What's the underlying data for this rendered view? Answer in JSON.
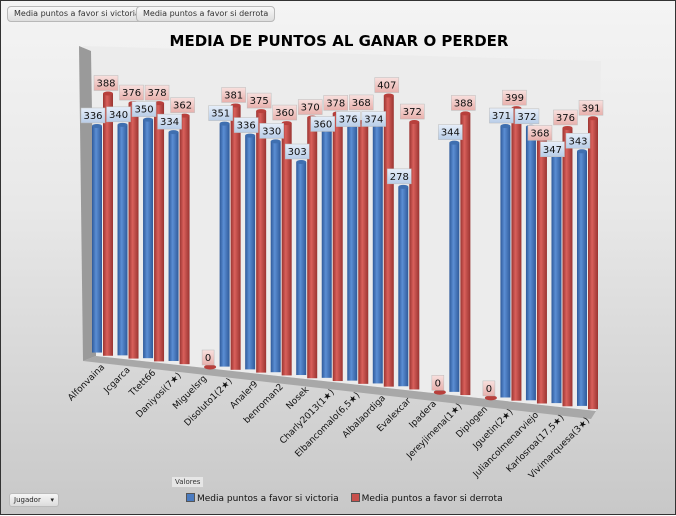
{
  "field_buttons": [
    "Media puntos a favor si victoria",
    "Media puntos a favor si derrota"
  ],
  "valores_label": "Valores",
  "jugador_filter": {
    "label": "Jugador",
    "icon": "dropdown-arrow-icon"
  },
  "colors": {
    "victoria": "#4a7bc0",
    "derrota": "#c8504c"
  },
  "chart_data": {
    "type": "bar",
    "title": "MEDIA DE PUNTOS AL GANAR O PERDER",
    "xlabel": "",
    "ylabel": "",
    "legend_position": "bottom",
    "categories": [
      "Alfonvaina",
      "Jcgarca",
      "Ttett66",
      "Daniyosi(7★)",
      "Miguelsrg",
      "Disoluto1(2★)",
      "Analer9",
      "benroman2",
      "Nosek",
      "Charly2013(1★)",
      "Elbancomalo(6,5★)",
      "Albalaordiga",
      "Evalexcar",
      "Ipadera",
      "Jereyjimena(1★)",
      "Diplogen",
      "Jguetin(2★)",
      "Juliancolmenarviejo",
      "Karlosroa(17,5★)",
      "Vivimarquesa(3★)"
    ],
    "series": [
      {
        "name": "Media puntos a favor si victoria",
        "values": [
          336,
          340,
          350,
          334,
          null,
          351,
          336,
          330,
          303,
          360,
          376,
          374,
          278,
          null,
          344,
          null,
          371,
          372,
          347,
          343
        ]
      },
      {
        "name": "Media puntos a favor si derrota",
        "values": [
          388,
          376,
          378,
          362,
          0,
          381,
          375,
          360,
          370,
          378,
          368,
          407,
          372,
          0,
          388,
          0,
          399,
          368,
          376,
          391
        ]
      }
    ]
  }
}
